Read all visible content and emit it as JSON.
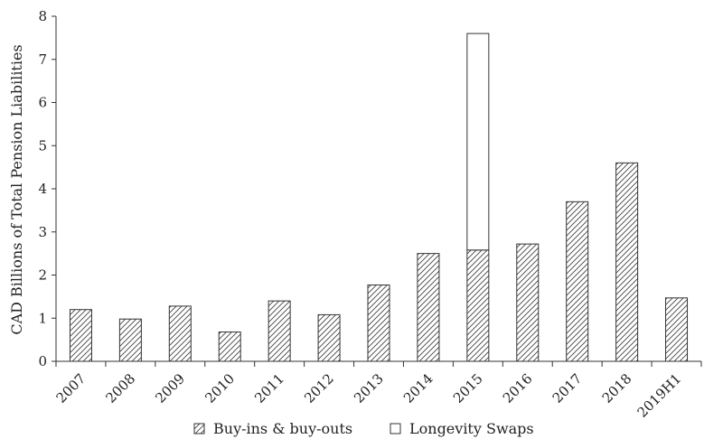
{
  "chart_data": {
    "type": "bar",
    "stacked": true,
    "title": "",
    "xlabel": "",
    "ylabel": "CAD Billions of Total Pension Liabilities",
    "ylim": [
      0,
      8
    ],
    "yticks": [
      0,
      1,
      2,
      3,
      4,
      5,
      6,
      7,
      8
    ],
    "categories": [
      "2007",
      "2008",
      "2009",
      "2010",
      "2011",
      "2012",
      "2013",
      "2014",
      "2015",
      "2016",
      "2017",
      "2018",
      "2019H1"
    ],
    "series": [
      {
        "name": "Buy-ins & buy-outs",
        "pattern": "hatched",
        "values": [
          1.2,
          0.98,
          1.28,
          0.68,
          1.4,
          1.08,
          1.77,
          2.5,
          2.58,
          2.72,
          3.7,
          4.6,
          1.47
        ]
      },
      {
        "name": "Longevity Swaps",
        "pattern": "open",
        "values": [
          0,
          0,
          0,
          0,
          0,
          0,
          0,
          0,
          5.02,
          0,
          0,
          0,
          0
        ]
      }
    ],
    "legend_position": "bottom",
    "grid": false,
    "colors": {
      "bar_stroke": "#333333",
      "fill": "#ffffff",
      "axis": "#333333"
    }
  }
}
